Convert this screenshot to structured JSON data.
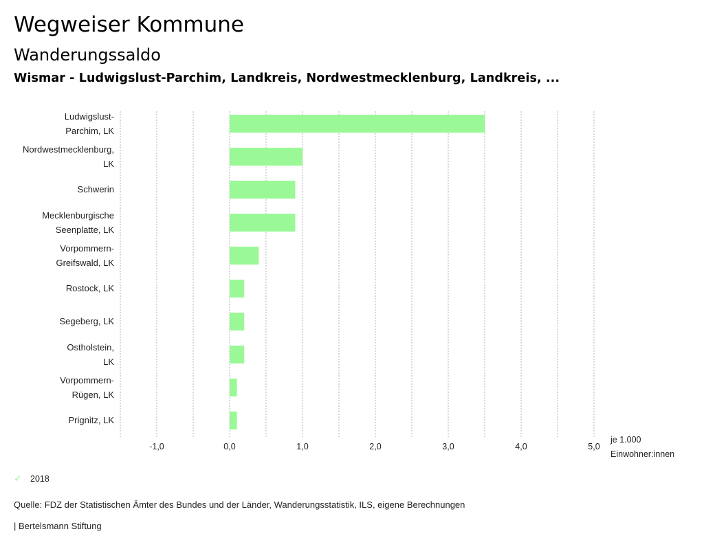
{
  "header": {
    "title": "Wegweiser Kommune",
    "subtitle": "Wanderungssaldo",
    "region": "Wismar - Ludwigslust-Parchim, Landkreis, Nordwestmecklenburg, Landkreis, ..."
  },
  "chart_data": {
    "type": "bar",
    "orientation": "horizontal",
    "title": "Wanderungssaldo",
    "xlabel": "je 1.000 Einwohner:innen",
    "xlabel_lines": [
      "je 1.000",
      "Einwohner:innen"
    ],
    "ylabel": "",
    "xlim": [
      -1.5,
      5.0
    ],
    "grid": true,
    "gridline_values": [
      -1.5,
      -1.0,
      -0.5,
      0.0,
      0.5,
      1.0,
      1.5,
      2.0,
      2.5,
      3.0,
      3.5,
      4.0,
      4.5,
      5.0
    ],
    "ticks": [
      {
        "value": -1.0,
        "label": "-1,0"
      },
      {
        "value": 0.0,
        "label": "0,0"
      },
      {
        "value": 1.0,
        "label": "1,0"
      },
      {
        "value": 2.0,
        "label": "2,0"
      },
      {
        "value": 3.0,
        "label": "3,0"
      },
      {
        "value": 4.0,
        "label": "4,0"
      },
      {
        "value": 5.0,
        "label": "5,0"
      }
    ],
    "categories": [
      [
        "Ludwigslust-",
        "Parchim, LK"
      ],
      [
        "Nordwestmecklenburg,",
        "LK"
      ],
      [
        "Schwerin"
      ],
      [
        "Mecklenburgische",
        "Seenplatte, LK"
      ],
      [
        "Vorpommern-",
        "Greifswald, LK"
      ],
      [
        "Rostock, LK"
      ],
      [
        "Segeberg, LK"
      ],
      [
        "Ostholstein,",
        "LK"
      ],
      [
        "Vorpommern-",
        "Rügen, LK"
      ],
      [
        "Prignitz, LK"
      ]
    ],
    "series": [
      {
        "name": "2018",
        "color": "#9af996",
        "values": [
          3.5,
          1.0,
          0.9,
          0.9,
          0.4,
          0.2,
          0.2,
          0.2,
          0.1,
          0.1
        ]
      }
    ],
    "legend": "bottom-left"
  },
  "legend": {
    "items": [
      {
        "label": "2018",
        "icon": "check-icon",
        "color": "#9af996"
      }
    ]
  },
  "footer": {
    "source": "Quelle: FDZ der Statistischen Ämter des Bundes und der Länder, Wanderungsstatistik, ILS, eigene Berechnungen",
    "brand": "| Bertelsmann Stiftung"
  }
}
